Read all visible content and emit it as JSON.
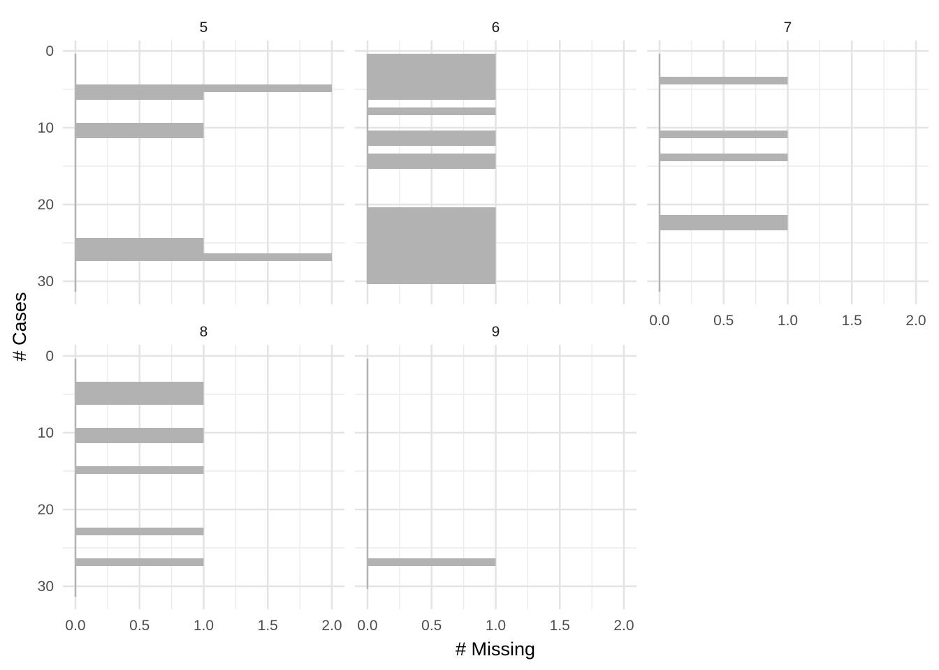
{
  "chart_data": {
    "type": "bar",
    "orientation": "horizontal",
    "facet_by": "panel",
    "xlabel": "# Missing",
    "ylabel": "# Cases",
    "xlim": [
      0,
      2
    ],
    "ylim": [
      0,
      31
    ],
    "y_reversed": true,
    "x_ticks": [
      "0.0",
      "0.5",
      "1.0",
      "1.5",
      "2.0"
    ],
    "y_ticks": [
      "0",
      "10",
      "20",
      "30"
    ],
    "bar_color": "#b2b2b2",
    "grid": true,
    "facets": [
      {
        "label": "5",
        "bars": [
          {
            "case": 1,
            "missing": 0
          },
          {
            "case": 2,
            "missing": 0
          },
          {
            "case": 3,
            "missing": 0
          },
          {
            "case": 4,
            "missing": 0
          },
          {
            "case": 5,
            "missing": 2
          },
          {
            "case": 6,
            "missing": 1
          },
          {
            "case": 7,
            "missing": 0
          },
          {
            "case": 8,
            "missing": 0
          },
          {
            "case": 9,
            "missing": 0
          },
          {
            "case": 10,
            "missing": 1
          },
          {
            "case": 11,
            "missing": 1
          },
          {
            "case": 12,
            "missing": 0
          },
          {
            "case": 13,
            "missing": 0
          },
          {
            "case": 14,
            "missing": 0
          },
          {
            "case": 15,
            "missing": 0
          },
          {
            "case": 16,
            "missing": 0
          },
          {
            "case": 17,
            "missing": 0
          },
          {
            "case": 18,
            "missing": 0
          },
          {
            "case": 19,
            "missing": 0
          },
          {
            "case": 20,
            "missing": 0
          },
          {
            "case": 21,
            "missing": 0
          },
          {
            "case": 22,
            "missing": 0
          },
          {
            "case": 23,
            "missing": 0
          },
          {
            "case": 24,
            "missing": 0
          },
          {
            "case": 25,
            "missing": 1
          },
          {
            "case": 26,
            "missing": 1
          },
          {
            "case": 27,
            "missing": 2
          },
          {
            "case": 28,
            "missing": 0
          },
          {
            "case": 29,
            "missing": 0
          },
          {
            "case": 30,
            "missing": 0
          },
          {
            "case": 31,
            "missing": 0
          }
        ]
      },
      {
        "label": "6",
        "bars": [
          {
            "case": 1,
            "missing": 1
          },
          {
            "case": 2,
            "missing": 1
          },
          {
            "case": 3,
            "missing": 1
          },
          {
            "case": 4,
            "missing": 1
          },
          {
            "case": 5,
            "missing": 1
          },
          {
            "case": 6,
            "missing": 1
          },
          {
            "case": 7,
            "missing": 0
          },
          {
            "case": 8,
            "missing": 1
          },
          {
            "case": 9,
            "missing": 0
          },
          {
            "case": 10,
            "missing": 0
          },
          {
            "case": 11,
            "missing": 1
          },
          {
            "case": 12,
            "missing": 1
          },
          {
            "case": 13,
            "missing": 0
          },
          {
            "case": 14,
            "missing": 1
          },
          {
            "case": 15,
            "missing": 1
          },
          {
            "case": 16,
            "missing": 0
          },
          {
            "case": 17,
            "missing": 0
          },
          {
            "case": 18,
            "missing": 0
          },
          {
            "case": 19,
            "missing": 0
          },
          {
            "case": 20,
            "missing": 0
          },
          {
            "case": 21,
            "missing": 1
          },
          {
            "case": 22,
            "missing": 1
          },
          {
            "case": 23,
            "missing": 1
          },
          {
            "case": 24,
            "missing": 1
          },
          {
            "case": 25,
            "missing": 1
          },
          {
            "case": 26,
            "missing": 1
          },
          {
            "case": 27,
            "missing": 1
          },
          {
            "case": 28,
            "missing": 1
          },
          {
            "case": 29,
            "missing": 1
          },
          {
            "case": 30,
            "missing": 1
          }
        ]
      },
      {
        "label": "7",
        "bars": [
          {
            "case": 1,
            "missing": 0
          },
          {
            "case": 2,
            "missing": 0
          },
          {
            "case": 3,
            "missing": 0
          },
          {
            "case": 4,
            "missing": 1
          },
          {
            "case": 5,
            "missing": 0
          },
          {
            "case": 6,
            "missing": 0
          },
          {
            "case": 7,
            "missing": 0
          },
          {
            "case": 8,
            "missing": 0
          },
          {
            "case": 9,
            "missing": 0
          },
          {
            "case": 10,
            "missing": 0
          },
          {
            "case": 11,
            "missing": 1
          },
          {
            "case": 12,
            "missing": 0
          },
          {
            "case": 13,
            "missing": 0
          },
          {
            "case": 14,
            "missing": 1
          },
          {
            "case": 15,
            "missing": 0
          },
          {
            "case": 16,
            "missing": 0
          },
          {
            "case": 17,
            "missing": 0
          },
          {
            "case": 18,
            "missing": 0
          },
          {
            "case": 19,
            "missing": 0
          },
          {
            "case": 20,
            "missing": 0
          },
          {
            "case": 21,
            "missing": 0
          },
          {
            "case": 22,
            "missing": 1
          },
          {
            "case": 23,
            "missing": 1
          },
          {
            "case": 24,
            "missing": 0
          },
          {
            "case": 25,
            "missing": 0
          },
          {
            "case": 26,
            "missing": 0
          },
          {
            "case": 27,
            "missing": 0
          },
          {
            "case": 28,
            "missing": 0
          },
          {
            "case": 29,
            "missing": 0
          },
          {
            "case": 30,
            "missing": 0
          },
          {
            "case": 31,
            "missing": 0
          }
        ]
      },
      {
        "label": "8",
        "bars": [
          {
            "case": 1,
            "missing": 0
          },
          {
            "case": 2,
            "missing": 0
          },
          {
            "case": 3,
            "missing": 0
          },
          {
            "case": 4,
            "missing": 1
          },
          {
            "case": 5,
            "missing": 1
          },
          {
            "case": 6,
            "missing": 1
          },
          {
            "case": 7,
            "missing": 0
          },
          {
            "case": 8,
            "missing": 0
          },
          {
            "case": 9,
            "missing": 0
          },
          {
            "case": 10,
            "missing": 1
          },
          {
            "case": 11,
            "missing": 1
          },
          {
            "case": 12,
            "missing": 0
          },
          {
            "case": 13,
            "missing": 0
          },
          {
            "case": 14,
            "missing": 0
          },
          {
            "case": 15,
            "missing": 1
          },
          {
            "case": 16,
            "missing": 0
          },
          {
            "case": 17,
            "missing": 0
          },
          {
            "case": 18,
            "missing": 0
          },
          {
            "case": 19,
            "missing": 0
          },
          {
            "case": 20,
            "missing": 0
          },
          {
            "case": 21,
            "missing": 0
          },
          {
            "case": 22,
            "missing": 0
          },
          {
            "case": 23,
            "missing": 1
          },
          {
            "case": 24,
            "missing": 0
          },
          {
            "case": 25,
            "missing": 0
          },
          {
            "case": 26,
            "missing": 0
          },
          {
            "case": 27,
            "missing": 1
          },
          {
            "case": 28,
            "missing": 0
          },
          {
            "case": 29,
            "missing": 0
          },
          {
            "case": 30,
            "missing": 0
          },
          {
            "case": 31,
            "missing": 0
          }
        ]
      },
      {
        "label": "9",
        "bars": [
          {
            "case": 1,
            "missing": 0
          },
          {
            "case": 2,
            "missing": 0
          },
          {
            "case": 3,
            "missing": 0
          },
          {
            "case": 4,
            "missing": 0
          },
          {
            "case": 5,
            "missing": 0
          },
          {
            "case": 6,
            "missing": 0
          },
          {
            "case": 7,
            "missing": 0
          },
          {
            "case": 8,
            "missing": 0
          },
          {
            "case": 9,
            "missing": 0
          },
          {
            "case": 10,
            "missing": 0
          },
          {
            "case": 11,
            "missing": 0
          },
          {
            "case": 12,
            "missing": 0
          },
          {
            "case": 13,
            "missing": 0
          },
          {
            "case": 14,
            "missing": 0
          },
          {
            "case": 15,
            "missing": 0
          },
          {
            "case": 16,
            "missing": 0
          },
          {
            "case": 17,
            "missing": 0
          },
          {
            "case": 18,
            "missing": 0
          },
          {
            "case": 19,
            "missing": 0
          },
          {
            "case": 20,
            "missing": 0
          },
          {
            "case": 21,
            "missing": 0
          },
          {
            "case": 22,
            "missing": 0
          },
          {
            "case": 23,
            "missing": 0
          },
          {
            "case": 24,
            "missing": 0
          },
          {
            "case": 25,
            "missing": 0
          },
          {
            "case": 26,
            "missing": 0
          },
          {
            "case": 27,
            "missing": 1
          },
          {
            "case": 28,
            "missing": 0
          },
          {
            "case": 29,
            "missing": 0
          },
          {
            "case": 30,
            "missing": 0
          }
        ]
      }
    ]
  }
}
